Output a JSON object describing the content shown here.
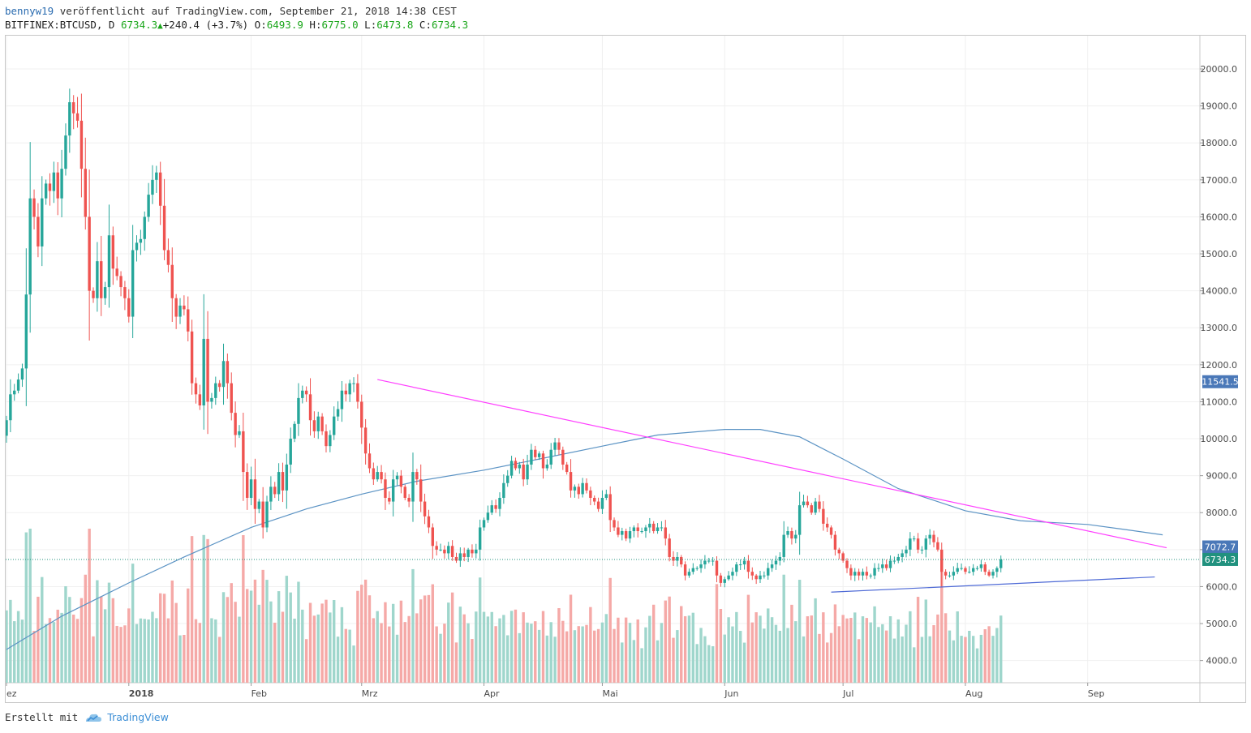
{
  "header": {
    "user": "bennyw19",
    "published": " veröffentlicht auf TradingView.com, September 21, 2018 14:38 CEST",
    "symbol": "BITFINEX:BTCUSD, D",
    "last": "6734.3",
    "change": "+240.4 (+3.7%)",
    "o_label": "O:",
    "o_value": "6493.9",
    "h_label": "H:",
    "h_value": "6775.0",
    "l_label": "L:",
    "l_value": "6473.8",
    "c_label": "C:",
    "c_value": "6734.3"
  },
  "footer": {
    "created_with": "Erstellt mit",
    "brand": "TradingView"
  },
  "chart_data": {
    "type": "candlestick",
    "title": "BITFINEX:BTCUSD, D",
    "y_axis": {
      "ticks": [
        "4000.0",
        "5000.0",
        "6000.0",
        "7000.0",
        "8000.0",
        "9000.0",
        "10000.0",
        "11000.0",
        "12000.0",
        "13000.0",
        "14000.0",
        "15000.0",
        "16000.0",
        "17000.0",
        "18000.0",
        "19000.0",
        "20000.0"
      ],
      "tick_values": [
        4000,
        5000,
        6000,
        7000,
        8000,
        9000,
        10000,
        11000,
        12000,
        13000,
        14000,
        15000,
        16000,
        17000,
        18000,
        19000,
        20000
      ],
      "range": [
        3400,
        20900
      ]
    },
    "x_axis": {
      "ticks": [
        {
          "label": "ez",
          "date": "2017-12-01",
          "bold": false
        },
        {
          "label": "2018",
          "date": "2018-01-01",
          "bold": true
        },
        {
          "label": "Feb",
          "date": "2018-02-01",
          "bold": false
        },
        {
          "label": "Mrz",
          "date": "2018-03-01",
          "bold": false
        },
        {
          "label": "Apr",
          "date": "2018-04-01",
          "bold": false
        },
        {
          "label": "Mai",
          "date": "2018-05-01",
          "bold": false
        },
        {
          "label": "Jun",
          "date": "2018-06-01",
          "bold": false
        },
        {
          "label": "Jul",
          "date": "2018-07-01",
          "bold": false
        },
        {
          "label": "Aug",
          "date": "2018-08-01",
          "bold": false
        },
        {
          "label": "Sep",
          "date": "2018-09-01",
          "bold": false
        }
      ],
      "range": [
        "2017-12-01",
        "2018-09-21"
      ]
    },
    "series": [
      {
        "name": "BTCUSD daily close",
        "type": "candlestick",
        "start_date": "2017-12-01",
        "step": "1 day",
        "close": [
          10500,
          11200,
          11300,
          11600,
          11900,
          13900,
          16500,
          16000,
          15200,
          16500,
          16900,
          16700,
          17200,
          16500,
          17300,
          18200,
          19100,
          18800,
          18600,
          17300,
          16000,
          14000,
          13800,
          14800,
          13800,
          14100,
          15500,
          14600,
          14400,
          14100,
          13800,
          13300,
          15100,
          15300,
          15400,
          16000,
          16600,
          17000,
          17200,
          16300,
          15100,
          14700,
          13800,
          13300,
          13600,
          13500,
          12900,
          11500,
          11200,
          10900,
          12700,
          11000,
          11100,
          11500,
          11400,
          12100,
          11500,
          10700,
          10100,
          10200,
          9100,
          8400,
          8900,
          8100,
          8300,
          7600,
          8300,
          8700,
          8500,
          9100,
          8600,
          9300,
          10000,
          10400,
          11100,
          11300,
          11200,
          10500,
          10200,
          10600,
          10200,
          9800,
          10100,
          10600,
          10800,
          11300,
          11200,
          11500,
          11500,
          11000,
          10300,
          9600,
          9200,
          8900,
          9100,
          8900,
          8400,
          8300,
          8900,
          9000,
          8700,
          8400,
          8300,
          9100,
          8900,
          8300,
          7900,
          7600,
          7100,
          7000,
          7000,
          6900,
          7100,
          6800,
          6700,
          6900,
          6800,
          7000,
          6900,
          7000,
          7600,
          7800,
          8000,
          8200,
          8100,
          8400,
          8800,
          9000,
          9400,
          9200,
          9300,
          8900,
          9300,
          9700,
          9500,
          9600,
          9200,
          9300,
          9700,
          9900,
          9700,
          9300,
          9100,
          8600,
          8700,
          8500,
          8800,
          8600,
          8400,
          8300,
          8100,
          8400,
          8500,
          7800,
          7600,
          7400,
          7500,
          7300,
          7500,
          7600,
          7500,
          7500,
          7600,
          7700,
          7500,
          7600,
          7600,
          7300,
          6800,
          6700,
          6800,
          6600,
          6300,
          6400,
          6500,
          6500,
          6600,
          6700,
          6700,
          6700,
          6300,
          6100,
          6200,
          6300,
          6400,
          6600,
          6600,
          6700,
          6400,
          6300,
          6200,
          6300,
          6300,
          6500,
          6600,
          6700,
          6800,
          7400,
          7500,
          7300,
          7400,
          8200,
          8300,
          8200,
          8000,
          8300,
          8100,
          7700,
          7600,
          7400,
          7000,
          6900,
          6700,
          6500,
          6300,
          6400,
          6300,
          6400,
          6300,
          6300,
          6500,
          6500,
          6600,
          6500,
          6700,
          6700,
          6800,
          6900,
          7000,
          7300,
          7300,
          7000,
          7000,
          7300,
          7400,
          7200,
          7000,
          6400,
          6300,
          6300,
          6400,
          6500,
          6500,
          6400,
          6400,
          6500,
          6500,
          6600,
          6400,
          6300,
          6400,
          6500,
          6734
        ]
      },
      {
        "name": "200-day moving average",
        "type": "line",
        "points": [
          [
            "2017-12-01",
            4300
          ],
          [
            "2017-12-15",
            5200
          ],
          [
            "2018-01-01",
            6100
          ],
          [
            "2018-01-15",
            6800
          ],
          [
            "2018-02-01",
            7600
          ],
          [
            "2018-02-15",
            8100
          ],
          [
            "2018-03-01",
            8500
          ],
          [
            "2018-03-15",
            8850
          ],
          [
            "2018-04-01",
            9150
          ],
          [
            "2018-04-15",
            9450
          ],
          [
            "2018-05-01",
            9800
          ],
          [
            "2018-05-15",
            10100
          ],
          [
            "2018-06-01",
            10250
          ],
          [
            "2018-06-10",
            10250
          ],
          [
            "2018-06-20",
            10050
          ],
          [
            "2018-07-01",
            9450
          ],
          [
            "2018-07-15",
            8650
          ],
          [
            "2018-08-01",
            8050
          ],
          [
            "2018-08-15",
            7780
          ],
          [
            "2018-09-01",
            7680
          ],
          [
            "2018-09-10",
            7550
          ],
          [
            "2018-09-20",
            7400
          ]
        ]
      },
      {
        "name": "Descending resistance trendline",
        "type": "line",
        "points": [
          [
            "2018-03-05",
            11600
          ],
          [
            "2018-09-21",
            7050
          ]
        ]
      },
      {
        "name": "Ascending support trendline",
        "type": "line",
        "points": [
          [
            "2018-06-28",
            5850
          ],
          [
            "2018-09-18",
            6260
          ]
        ]
      }
    ],
    "price_tags": [
      {
        "label": "11541.5",
        "value": 11541.5,
        "color": "#4a78b8"
      },
      {
        "label": "7072.7",
        "value": 7072.7,
        "color": "#4a78b8"
      },
      {
        "label": "6734.3",
        "value": 6734.3,
        "color": "#21917e"
      }
    ],
    "current_price_line": 6734.3,
    "volume": "daily volume histogram, colored by candle direction",
    "colors": {
      "up": "#26a69a",
      "down": "#ef5350",
      "up_volume": "#9fd6cc",
      "down_volume": "#f5a9a7",
      "ma": "#5b93c4",
      "resistance": "#ff40ff",
      "support": "#4e6ad6",
      "grid": "#f0f0f0"
    }
  }
}
